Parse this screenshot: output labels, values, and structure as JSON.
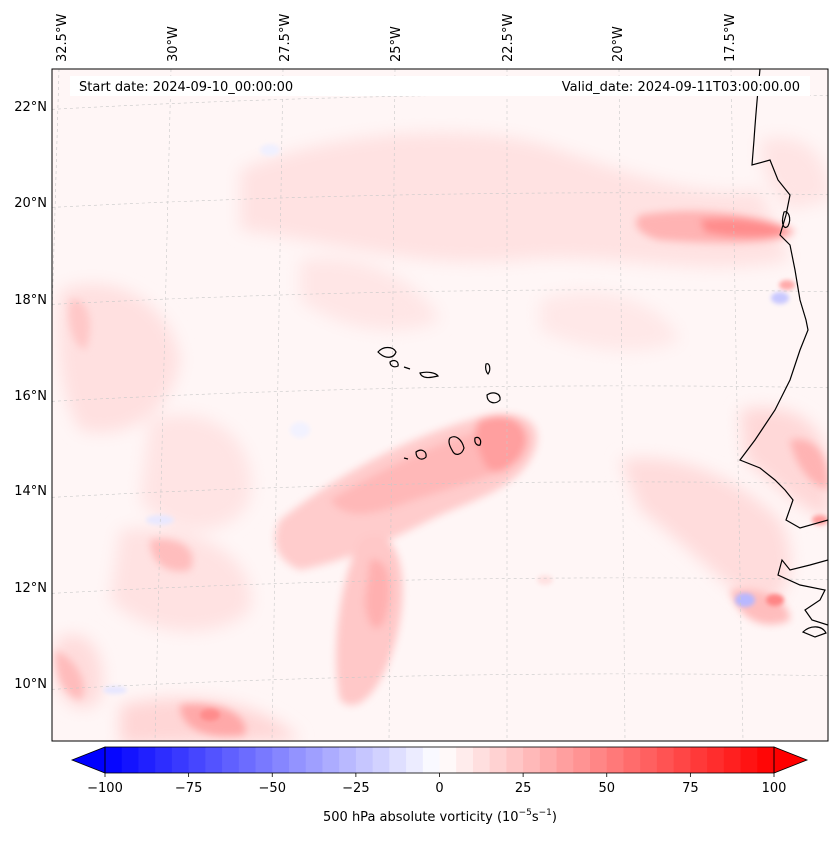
{
  "map": {
    "projection": "lambert-conformal",
    "variable": "500 hPa absolute vorticity",
    "start_date_label": "Start date: 2024-09-10_00:00:00",
    "valid_date_label": "Valid_date: 2024-09-11T03:00:00.00",
    "lon_labels": [
      "32.5°W",
      "30°W",
      "27.5°W",
      "25°W",
      "22.5°W",
      "20°W",
      "17.5°W"
    ],
    "lat_labels": [
      "22°N",
      "20°N",
      "18°N",
      "16°N",
      "14°N",
      "12°N",
      "10°N"
    ],
    "features": [
      "Cabo Verde islands",
      "West African coastline (Mauritania, Senegal, Gambia, Guinea-Bissau)"
    ]
  },
  "colorbar": {
    "label_prefix": "500 hPa absolute vorticity (10",
    "label_exp1": "−5",
    "label_mid": "s",
    "label_exp2": "−1",
    "label_suffix": ")",
    "vmin": -100,
    "vmax": 100,
    "colormap": "bwr",
    "extend": "both",
    "ticks": [
      "−100",
      "−75",
      "−50",
      "−25",
      "0",
      "25",
      "50",
      "75",
      "100"
    ],
    "low_color": "#0000ff",
    "mid_color": "#ffffff",
    "high_color": "#ff0000"
  }
}
